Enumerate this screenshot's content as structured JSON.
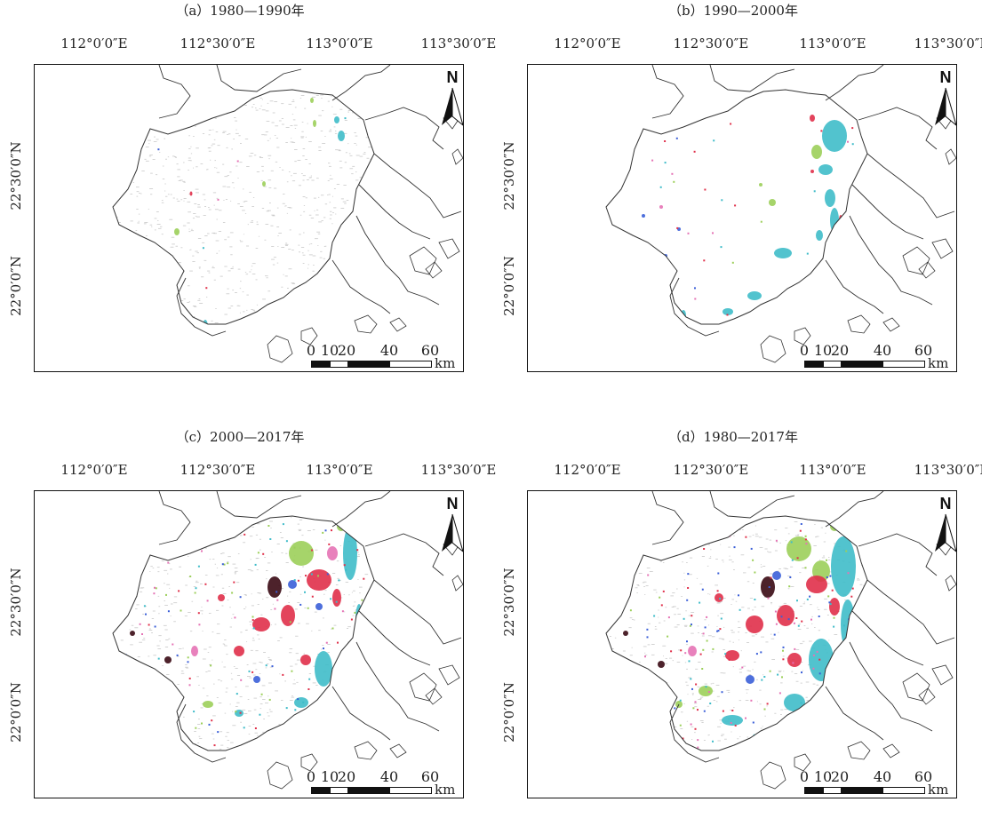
{
  "longitude_labels": [
    "112°0′0″E",
    "112°30′0″E",
    "113°0′0″E",
    "113°30′0″E"
  ],
  "latitude_labels": [
    "22°30′0″N",
    "22°0′0″N"
  ],
  "north_label": "N",
  "scale": {
    "ticks": [
      "0",
      "10",
      "20",
      "40",
      "60"
    ],
    "unit": "km"
  },
  "panels": [
    {
      "title": "（a）1980—1990年"
    },
    {
      "title": "（b）1990—2000年"
    },
    {
      "title": "（c）2000—2017年"
    },
    {
      "title": "（d）1980—2017年"
    }
  ],
  "colors": {
    "cyan": "#3fbcc9",
    "green": "#9ccf5a",
    "red": "#e0304a",
    "pink": "#e573b5",
    "blue": "#3b5fd8",
    "darkred": "#3a0a14",
    "gray": "#c9c9c9"
  }
}
